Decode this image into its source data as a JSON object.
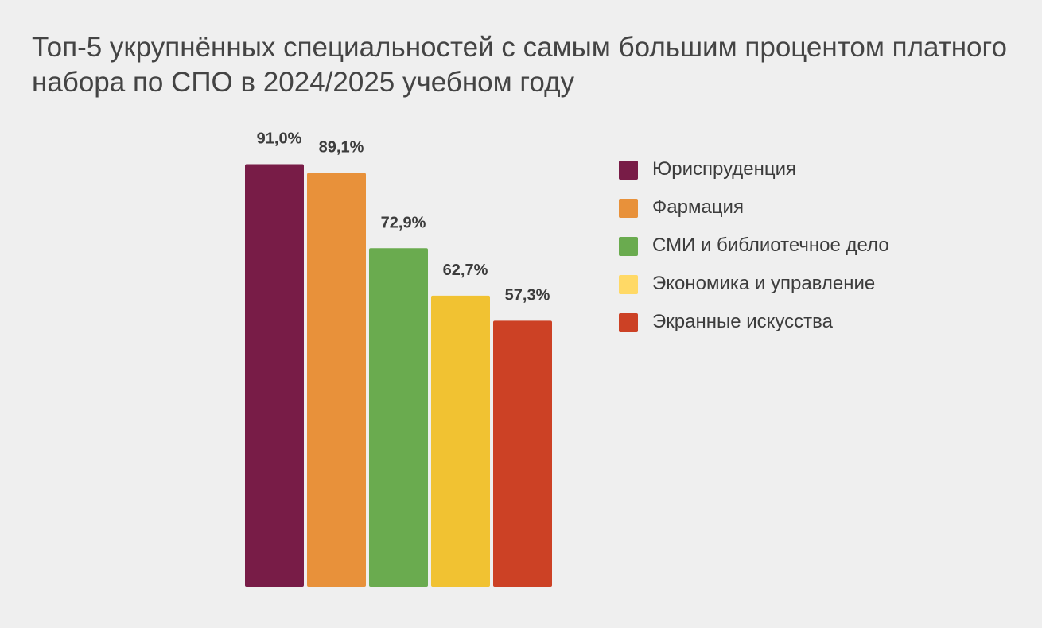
{
  "title": "Топ-5 укрупнённых специальностей с самым большим процентом платного набора по СПО в 2024/2025 учебном году",
  "chart_data": {
    "type": "bar",
    "title": "Топ-5 укрупнённых специальностей с самым большим процентом платного набора по СПО в 2024/2025 учебном году",
    "categories": [
      "Юриспруденция",
      "Фармация",
      "СМИ и библиотечное дело",
      "Экономика и управление",
      "Экранные искусства"
    ],
    "values": [
      91.0,
      89.1,
      72.9,
      62.7,
      57.3
    ],
    "value_labels": [
      "91,0%",
      "89,1%",
      "72,9%",
      "62,7%",
      "57,3%"
    ],
    "colors": [
      "#781c47",
      "#e8913a",
      "#6aab4f",
      "#f1c232",
      "#cc4125"
    ],
    "legend_colors": [
      "#781c47",
      "#e8913a",
      "#6aab4f",
      "#ffd966",
      "#cc4125"
    ],
    "ylim": [
      0,
      100
    ],
    "grid": false,
    "axes_visible": false,
    "legend_position": "right"
  }
}
